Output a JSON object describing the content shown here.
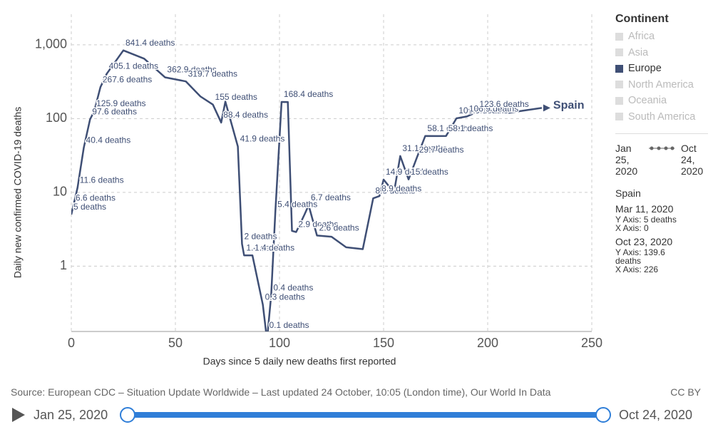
{
  "chart_data": {
    "type": "line",
    "ylabel": "Daily new confirmed COVID-19 deaths",
    "xlabel": "Days since 5 daily new deaths first reported",
    "log_y": true,
    "grid": true,
    "xlim": [
      0,
      250
    ],
    "xticks": [
      0,
      50,
      100,
      150,
      200,
      250
    ],
    "ylim": [
      0.13,
      2600
    ],
    "yticks": [
      1,
      10,
      100,
      {
        "value": 1000,
        "label": "1,000"
      }
    ],
    "series": [
      {
        "name": "Spain",
        "color": "#3f4f75",
        "x": [
          0,
          1,
          3,
          6,
          9,
          11,
          14,
          17,
          25,
          35,
          45,
          55,
          62,
          68,
          72,
          74,
          80,
          82,
          83,
          87,
          92,
          94,
          96,
          98,
          101,
          104,
          106,
          108,
          112,
          114,
          118,
          125,
          132,
          140,
          145,
          148,
          150,
          155,
          158,
          162,
          166,
          170,
          176,
          180,
          185,
          190,
          195,
          210,
          226
        ],
        "values": [
          5,
          6.6,
          11.6,
          40.4,
          97.6,
          125.9,
          267.6,
          405.1,
          841.4,
          650,
          362.9,
          319.7,
          200,
          155,
          88.4,
          170,
          41.9,
          2,
          1.4,
          1.4,
          0.3,
          0.1,
          0.4,
          5.4,
          168.4,
          168,
          3,
          2.9,
          5,
          6.7,
          2.6,
          2.5,
          1.8,
          1.7,
          8.3,
          8.9,
          14.9,
          10,
          31.1,
          15,
          29.7,
          58.1,
          58,
          58.1,
          100.9,
          106.9,
          123.6,
          120,
          139.6
        ],
        "value_labels": [
          "5 deaths",
          "6.6 deaths",
          "11.6 deaths",
          "40.4 deaths",
          "97.6 deaths",
          "125.9 deaths",
          "267.6 deaths",
          "405.1 deaths",
          "841.4 deaths",
          null,
          "362.9 deaths",
          "319.7 deaths",
          null,
          "155 deaths",
          "88.4 deaths",
          null,
          "41.9 deaths",
          "2 deaths",
          "1.4 deaths",
          "1.4 deaths",
          "0.3 deaths",
          "0.1 deaths",
          "0.4 deaths",
          "5.4 deaths",
          "168.4 deaths",
          null,
          null,
          "2.9 deaths",
          null,
          "6.7 deaths",
          "2.6 deaths",
          null,
          null,
          null,
          "8.3 deaths",
          "8.9 deaths",
          "14.9 deaths",
          null,
          "31.1 deaths",
          "15 deaths",
          "29.7 deaths",
          "58.1 deaths",
          null,
          "58.1 deaths",
          "100.9 deaths",
          "106.9 deaths",
          "123.6 deaths",
          null,
          null
        ]
      }
    ],
    "legend": {
      "title": "Continent",
      "items": [
        {
          "name": "Africa",
          "color": "#ddd"
        },
        {
          "name": "Asia",
          "color": "#ddd"
        },
        {
          "name": "Europe",
          "color": "#3f4f75"
        },
        {
          "name": "North America",
          "color": "#ddd"
        },
        {
          "name": "Oceania",
          "color": "#ddd"
        },
        {
          "name": "South America",
          "color": "#ddd"
        }
      ]
    },
    "range": {
      "start": "Jan 25, 2020",
      "end": "Oct 24, 2020"
    },
    "info": {
      "name": "Spain",
      "first": {
        "date": "Mar 11, 2020",
        "y": "Y Axis: 5 deaths",
        "x": "X Axis: 0"
      },
      "last": {
        "date": "Oct 23, 2020",
        "y": "Y Axis: 139.6 deaths",
        "x": "X Axis: 226"
      }
    },
    "source": "Source: European CDC – Situation Update Worldwide – Last updated 24 October, 10:05 (London time), Our World In Data",
    "license": "CC BY"
  }
}
